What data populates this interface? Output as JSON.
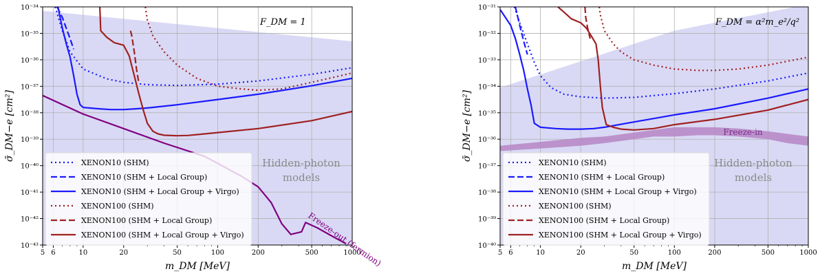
{
  "chart_data": [
    {
      "type": "line",
      "formfactor_label": "F_DM = 1",
      "xlabel": "m_DM [MeV]",
      "ylabel": "σ̄_DM−e [cm²]",
      "xscale": "log",
      "yscale": "log",
      "xlim": [
        5,
        1000
      ],
      "ylim": [
        1e-43,
        1e-34
      ],
      "xticks": [
        5,
        6,
        10,
        20,
        50,
        100,
        200,
        500,
        1000
      ],
      "xtick_labels": [
        "5",
        "6",
        "10",
        "20",
        "50",
        "100",
        "200",
        "500",
        "1000"
      ],
      "yticks_exp": [
        -43,
        -42,
        -41,
        -40,
        -39,
        -38,
        -37,
        -36,
        -35,
        -34
      ],
      "grid": true,
      "region_label": [
        "Hidden-photon",
        "models"
      ],
      "region_color": "#ccccf2",
      "region_boundary": {
        "x": [
          5,
          1000
        ],
        "y_exp": [
          -34.15,
          -35.3
        ]
      },
      "series": [
        {
          "name": "XENON10 (SHM)",
          "color": "#1a1aff",
          "style": "dotted",
          "x": [
            6.2,
            7,
            8,
            10,
            15,
            20,
            30,
            50,
            100,
            200,
            500,
            1000
          ],
          "y_exp": [
            -34,
            -34.9,
            -35.7,
            -36.35,
            -36.72,
            -36.85,
            -36.94,
            -36.97,
            -36.92,
            -36.8,
            -36.55,
            -36.3
          ]
        },
        {
          "name": "XENON10 (SHM + Local Group)",
          "color": "#1a1aff",
          "style": "dashed",
          "x": [
            6.4,
            7,
            8,
            8.5
          ],
          "y_exp": [
            -34,
            -34.4,
            -35.2,
            -35.6
          ]
        },
        {
          "name": "XENON10 (SHM + Local Group + Virgo)",
          "color": "#1a1aff",
          "style": "solid",
          "x": [
            6.5,
            7,
            7.5,
            8,
            8.5,
            9,
            9.5,
            10,
            13,
            16,
            20,
            25,
            30,
            50,
            100,
            200,
            500,
            1000
          ],
          "y_exp": [
            -34,
            -34.8,
            -35.4,
            -35.9,
            -36.6,
            -37.3,
            -37.7,
            -37.8,
            -37.85,
            -37.88,
            -37.88,
            -37.85,
            -37.82,
            -37.7,
            -37.5,
            -37.3,
            -36.98,
            -36.7
          ]
        },
        {
          "name": "XENON100 (SHM)",
          "color": "#a02020",
          "style": "dotted",
          "x": [
            29,
            30,
            33,
            40,
            50,
            70,
            100,
            150,
            200,
            300,
            500,
            1000
          ],
          "y_exp": [
            -34,
            -34.5,
            -35.1,
            -35.7,
            -36.2,
            -36.7,
            -37.0,
            -37.1,
            -37.15,
            -37.1,
            -36.85,
            -36.5
          ]
        },
        {
          "name": "XENON100 (SHM + Local Group)",
          "color": "#a02020",
          "style": "dashed",
          "x": [
            22.5,
            23,
            24,
            25,
            26
          ],
          "y_exp": [
            -34.9,
            -35.1,
            -35.7,
            -36.4,
            -36.9
          ]
        },
        {
          "name": "XENON100 (SHM + Local Group + Virgo)",
          "color": "#a02020",
          "style": "solid",
          "x": [
            13.3,
            13.5,
            15,
            17,
            20,
            22,
            24,
            26,
            28,
            30,
            33,
            36,
            40,
            50,
            60,
            80,
            100,
            200,
            500,
            1000
          ],
          "y_exp": [
            -34,
            -34.9,
            -35.15,
            -35.35,
            -35.45,
            -35.85,
            -36.6,
            -37.3,
            -37.9,
            -38.4,
            -38.7,
            -38.8,
            -38.85,
            -38.87,
            -38.86,
            -38.8,
            -38.75,
            -38.6,
            -38.3,
            -37.95
          ]
        },
        {
          "name": "Freeze-out (fermion)",
          "color": "#800080",
          "style": "solid",
          "x": [
            5,
            10,
            20,
            40,
            80,
            150,
            200,
            250,
            300,
            350,
            420,
            450,
            550,
            700,
            900
          ],
          "y_exp": [
            -37.35,
            -38.05,
            -38.6,
            -39.15,
            -39.65,
            -40.4,
            -40.8,
            -41.4,
            -42.2,
            -42.6,
            -42.5,
            -42.15,
            -42.35,
            -42.65,
            -42.95
          ]
        }
      ],
      "annotations": [
        "Freeze-out (fermion)"
      ]
    },
    {
      "type": "line",
      "formfactor_label": "F_DM = α²m_e²/q²",
      "xlabel": "m_DM [MeV]",
      "ylabel": "σ̄_DM−e [cm²]",
      "xscale": "log",
      "yscale": "log",
      "xlim": [
        5,
        1000
      ],
      "ylim": [
        1e-40,
        1e-31
      ],
      "xticks": [
        5,
        6,
        10,
        20,
        50,
        100,
        200,
        500,
        1000
      ],
      "xtick_labels": [
        "5",
        "6",
        "10",
        "20",
        "50",
        "100",
        "200",
        "500",
        "1000"
      ],
      "yticks_exp": [
        -40,
        -39,
        -38,
        -37,
        -36,
        -35,
        -34,
        -33,
        -32,
        -31
      ],
      "grid": true,
      "region_label": [
        "Hidden-photon",
        "models"
      ],
      "region_color": "#ccccf2",
      "region_boundary": {
        "x": [
          5,
          100,
          1000
        ],
        "y_exp": [
          -34.05,
          -31.9,
          -30.9
        ]
      },
      "series": [
        {
          "name": "XENON10 (SHM)",
          "color": "#1a1aff",
          "style": "dotted",
          "x": [
            6.4,
            7,
            8,
            9,
            10,
            12,
            15,
            20,
            30,
            50,
            100,
            200,
            500,
            1000
          ],
          "y_exp": [
            -31,
            -31.6,
            -32.4,
            -33.1,
            -33.6,
            -34.05,
            -34.3,
            -34.4,
            -34.45,
            -34.42,
            -34.28,
            -34.1,
            -33.8,
            -33.5
          ]
        },
        {
          "name": "XENON10 (SHM + Local Group)",
          "color": "#1a1aff",
          "style": "dashed",
          "x": [
            6.5,
            7,
            7.5,
            8
          ],
          "y_exp": [
            -31,
            -31.7,
            -32.3,
            -32.8
          ]
        },
        {
          "name": "XENON10 (SHM + Local Group + Virgo)",
          "color": "#1a1aff",
          "style": "solid",
          "x": [
            5,
            6,
            6.5,
            7,
            7.5,
            8,
            8.5,
            9,
            10,
            13,
            16,
            20,
            25,
            30,
            50,
            100,
            200,
            500,
            1000
          ],
          "y_exp": [
            -31.1,
            -31.7,
            -32.2,
            -32.8,
            -33.4,
            -34.1,
            -34.7,
            -35.4,
            -35.55,
            -35.6,
            -35.62,
            -35.62,
            -35.6,
            -35.55,
            -35.35,
            -35.08,
            -34.85,
            -34.45,
            -34.1
          ]
        },
        {
          "name": "XENON100 (SHM)",
          "color": "#a02020",
          "style": "dotted",
          "x": [
            27.5,
            28,
            30,
            35,
            40,
            50,
            70,
            100,
            150,
            200,
            300,
            500,
            1000
          ],
          "y_exp": [
            -31,
            -31.3,
            -31.9,
            -32.4,
            -32.7,
            -33.0,
            -33.2,
            -33.35,
            -33.4,
            -33.4,
            -33.35,
            -33.2,
            -32.9
          ]
        },
        {
          "name": "XENON100 (SHM + Local Group)",
          "color": "#a02020",
          "style": "dashed",
          "x": [
            21.5,
            21.8,
            22.5,
            23.5
          ],
          "y_exp": [
            -31,
            -31.4,
            -31.8,
            -32.2
          ]
        },
        {
          "name": "XENON100 (SHM + Local Group + Virgo)",
          "color": "#a02020",
          "style": "solid",
          "x": [
            13.5,
            15,
            17,
            20,
            22,
            24,
            26,
            27,
            28,
            29,
            31,
            35,
            40,
            50,
            70,
            100,
            200,
            500,
            1000
          ],
          "y_exp": [
            -31,
            -31.2,
            -31.45,
            -31.6,
            -31.8,
            -32.1,
            -32.4,
            -33.0,
            -34.0,
            -34.8,
            -35.45,
            -35.55,
            -35.62,
            -35.65,
            -35.6,
            -35.45,
            -35.25,
            -34.9,
            -34.5
          ]
        }
      ],
      "band": {
        "name": "Freeze-in",
        "color": "#b889c8",
        "x": [
          5,
          10,
          20,
          30,
          50,
          70,
          100,
          150,
          200,
          300,
          500,
          700,
          1000
        ],
        "y_upper_exp": [
          -36.25,
          -36.1,
          -35.95,
          -35.9,
          -35.75,
          -35.65,
          -35.55,
          -35.55,
          -35.55,
          -35.6,
          -35.7,
          -35.8,
          -35.9
        ],
        "y_lower_exp": [
          -36.45,
          -36.35,
          -36.25,
          -36.15,
          -36.0,
          -35.9,
          -35.9,
          -35.85,
          -35.85,
          -35.9,
          -36.0,
          -36.15,
          -36.25
        ]
      },
      "annotations": [
        "Freeze-in"
      ]
    }
  ]
}
